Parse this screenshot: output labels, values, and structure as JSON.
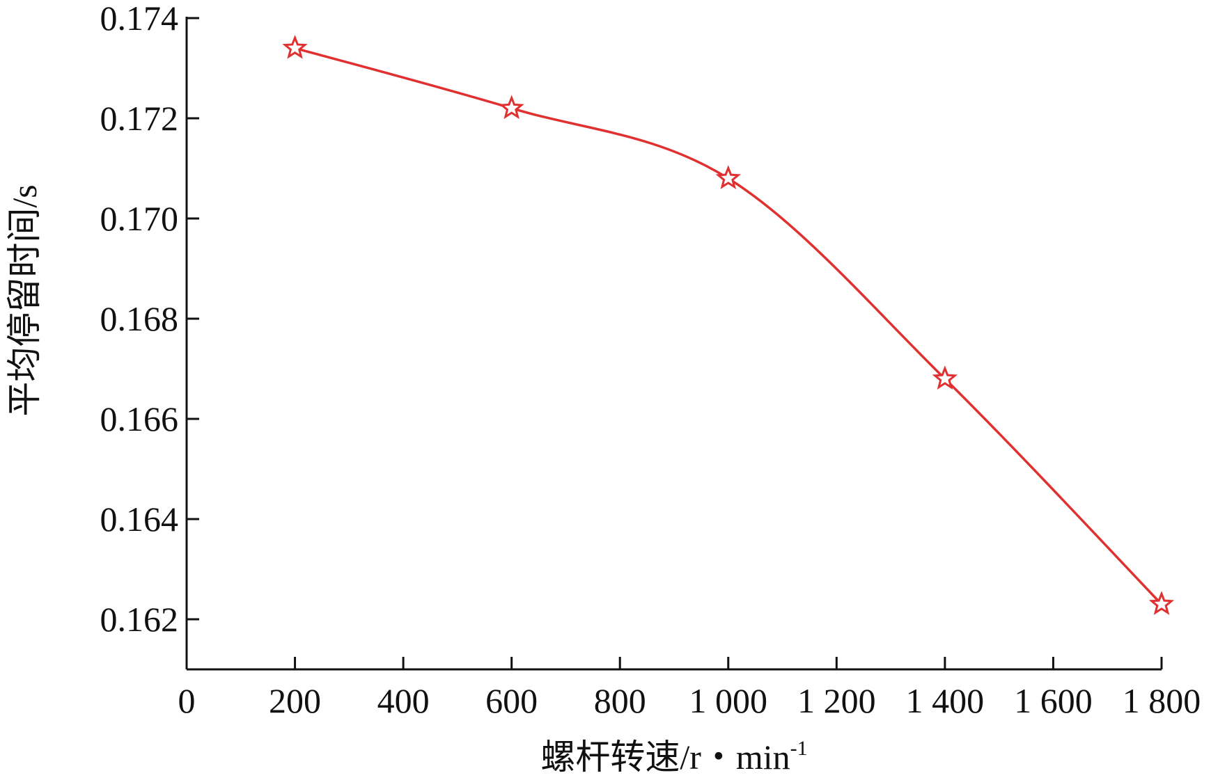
{
  "chart_data": {
    "type": "line",
    "title": "",
    "xlabel": "螺杆转速/r・min",
    "xlabel_superscript": "-1",
    "ylabel": "平均停留时间/s",
    "xlim": [
      0,
      1800
    ],
    "ylim": [
      0.161,
      0.174
    ],
    "x_ticks": [
      0,
      200,
      400,
      600,
      800,
      1000,
      1200,
      1400,
      1600,
      1800
    ],
    "x_tick_labels": [
      "0",
      "200",
      "400",
      "600",
      "800",
      "1 000",
      "1 200",
      "1 400",
      "1 600",
      "1 800"
    ],
    "y_ticks": [
      0.162,
      0.164,
      0.166,
      0.168,
      0.17,
      0.172,
      0.174
    ],
    "y_tick_labels": [
      "0.162",
      "0.164",
      "0.166",
      "0.168",
      "0.170",
      "0.172",
      "0.174"
    ],
    "grid": false,
    "smooth": true,
    "marker": "star",
    "series": [
      {
        "x": [
          200,
          600,
          1000,
          1400,
          1800
        ],
        "values": [
          0.1734,
          0.1722,
          0.1708,
          0.1668,
          0.1623
        ]
      }
    ],
    "colors": {
      "series": "#e03030",
      "axis": "#111111"
    }
  }
}
